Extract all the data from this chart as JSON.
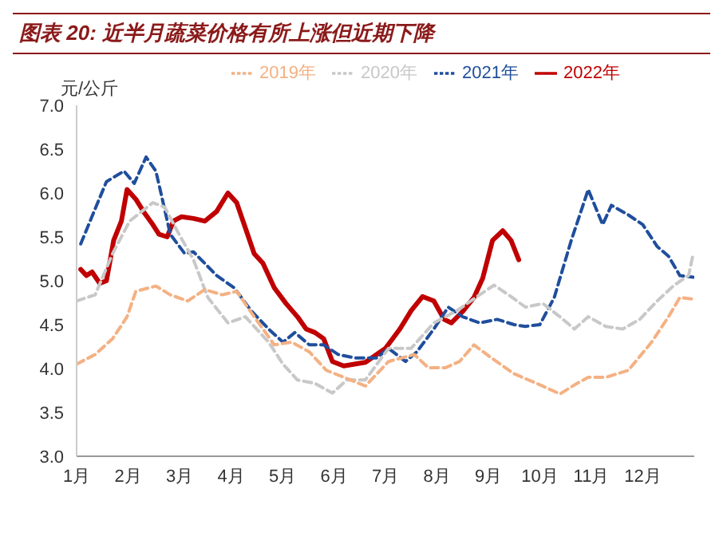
{
  "chart_data": {
    "type": "line",
    "title": "图表 20:  近半月蔬菜价格有所上涨但近期下降",
    "ylabel": "元/公斤",
    "xlim": [
      1,
      13
    ],
    "xticks": [
      {
        "value": 1,
        "label": "1月"
      },
      {
        "value": 2,
        "label": "2月"
      },
      {
        "value": 3,
        "label": "3月"
      },
      {
        "value": 4,
        "label": "4月"
      },
      {
        "value": 5,
        "label": "5月"
      },
      {
        "value": 6,
        "label": "6月"
      },
      {
        "value": 7,
        "label": "7月"
      },
      {
        "value": 8,
        "label": "8月"
      },
      {
        "value": 9,
        "label": "9月"
      },
      {
        "value": 10,
        "label": "10月"
      },
      {
        "value": 11,
        "label": "11月"
      },
      {
        "value": 12,
        "label": "12月"
      }
    ],
    "ylim": [
      3,
      7
    ],
    "yticks": [
      {
        "value": 3,
        "label": "3.0"
      },
      {
        "value": 3.5,
        "label": "3.5"
      },
      {
        "value": 4,
        "label": "4.0"
      },
      {
        "value": 4.5,
        "label": "4.5"
      },
      {
        "value": 5,
        "label": "5.0"
      },
      {
        "value": 5.5,
        "label": "5.5"
      },
      {
        "value": 6,
        "label": "6.0"
      },
      {
        "value": 6.5,
        "label": "6.5"
      },
      {
        "value": 7,
        "label": "7.0"
      }
    ],
    "grid": false,
    "legend": "top",
    "marker": "none",
    "series": [
      {
        "name": "2022年",
        "color": "#c00000",
        "line_style": "solid",
        "x": [
          1.08,
          1.19,
          1.3,
          1.45,
          1.58,
          1.72,
          1.87,
          1.98,
          2.15,
          2.31,
          2.48,
          2.6,
          2.76,
          2.88,
          3.04,
          3.27,
          3.49,
          3.72,
          3.94,
          4.11,
          4.28,
          4.45,
          4.62,
          4.84,
          5.07,
          5.29,
          5.46,
          5.63,
          5.8,
          5.97,
          6.19,
          6.61,
          7.0,
          7.28,
          7.5,
          7.72,
          7.94,
          8.14,
          8.28,
          8.5,
          8.72,
          8.89,
          9.08,
          9.28,
          9.44,
          9.59
        ],
        "values": [
          5.13,
          5.06,
          5.1,
          4.97,
          5.0,
          5.46,
          5.68,
          6.04,
          5.93,
          5.78,
          5.64,
          5.53,
          5.5,
          5.68,
          5.73,
          5.71,
          5.68,
          5.79,
          6.0,
          5.89,
          5.6,
          5.31,
          5.2,
          4.92,
          4.74,
          4.59,
          4.45,
          4.41,
          4.34,
          4.08,
          4.03,
          4.07,
          4.23,
          4.45,
          4.66,
          4.82,
          4.77,
          4.56,
          4.52,
          4.65,
          4.81,
          5.03,
          5.46,
          5.57,
          5.46,
          5.24
        ]
      },
      {
        "name": "2021年",
        "color": "#1f4e9c",
        "line_style": "dashed",
        "x": [
          1.08,
          1.36,
          1.58,
          1.92,
          2.12,
          2.35,
          2.54,
          2.65,
          2.82,
          3.1,
          3.27,
          3.72,
          4.06,
          4.39,
          4.73,
          5.01,
          5.24,
          5.52,
          5.8,
          6.08,
          6.42,
          6.83,
          7.06,
          7.39,
          7.61,
          7.94,
          8.22,
          8.5,
          8.83,
          9.17,
          9.5,
          9.72,
          10.0,
          10.28,
          10.61,
          10.94,
          11.22,
          11.39,
          11.72,
          12.0,
          12.28,
          12.5,
          12.72,
          12.98
        ],
        "values": [
          5.42,
          5.82,
          6.13,
          6.25,
          6.11,
          6.41,
          6.25,
          5.97,
          5.53,
          5.31,
          5.33,
          5.06,
          4.92,
          4.66,
          4.45,
          4.3,
          4.41,
          4.27,
          4.27,
          4.16,
          4.12,
          4.12,
          4.23,
          4.08,
          4.19,
          4.45,
          4.7,
          4.59,
          4.52,
          4.56,
          4.5,
          4.48,
          4.5,
          4.81,
          5.46,
          6.04,
          5.64,
          5.86,
          5.75,
          5.64,
          5.39,
          5.28,
          5.06,
          5.04
        ]
      },
      {
        "name": "2020年",
        "color": "#c8c8c8",
        "line_style": "dashed",
        "x": [
          1.0,
          1.36,
          1.7,
          2.03,
          2.48,
          2.71,
          2.99,
          3.27,
          3.55,
          3.94,
          4.28,
          4.73,
          5.01,
          5.29,
          5.63,
          5.97,
          6.25,
          6.61,
          7.06,
          7.5,
          7.94,
          8.39,
          8.83,
          9.11,
          9.39,
          9.72,
          10.06,
          10.39,
          10.67,
          10.94,
          11.28,
          11.61,
          11.94,
          12.28,
          12.61,
          12.89,
          12.98
        ],
        "values": [
          4.77,
          4.84,
          5.31,
          5.68,
          5.89,
          5.84,
          5.53,
          5.24,
          4.81,
          4.52,
          4.59,
          4.3,
          4.05,
          3.87,
          3.83,
          3.72,
          3.87,
          3.87,
          4.23,
          4.23,
          4.52,
          4.66,
          4.84,
          4.95,
          4.84,
          4.7,
          4.74,
          4.59,
          4.45,
          4.59,
          4.48,
          4.45,
          4.56,
          4.77,
          4.95,
          5.06,
          5.31
        ]
      },
      {
        "name": "2019年",
        "color": "#f4b183",
        "line_style": "dashed",
        "x": [
          1.0,
          1.36,
          1.7,
          1.98,
          2.15,
          2.54,
          2.82,
          3.16,
          3.49,
          3.83,
          4.11,
          4.45,
          4.84,
          5.18,
          5.52,
          5.85,
          6.19,
          6.61,
          7.06,
          7.56,
          7.83,
          8.17,
          8.44,
          8.72,
          9.06,
          9.5,
          9.94,
          10.39,
          10.72,
          10.94,
          11.28,
          11.72,
          12.17,
          12.5,
          12.72,
          12.98
        ],
        "values": [
          4.05,
          4.16,
          4.34,
          4.59,
          4.88,
          4.94,
          4.84,
          4.77,
          4.9,
          4.84,
          4.88,
          4.59,
          4.27,
          4.3,
          4.19,
          3.98,
          3.9,
          3.8,
          4.08,
          4.16,
          4.01,
          4.01,
          4.08,
          4.27,
          4.12,
          3.94,
          3.83,
          3.71,
          3.83,
          3.9,
          3.9,
          3.98,
          4.3,
          4.59,
          4.81,
          4.79
        ]
      }
    ]
  }
}
